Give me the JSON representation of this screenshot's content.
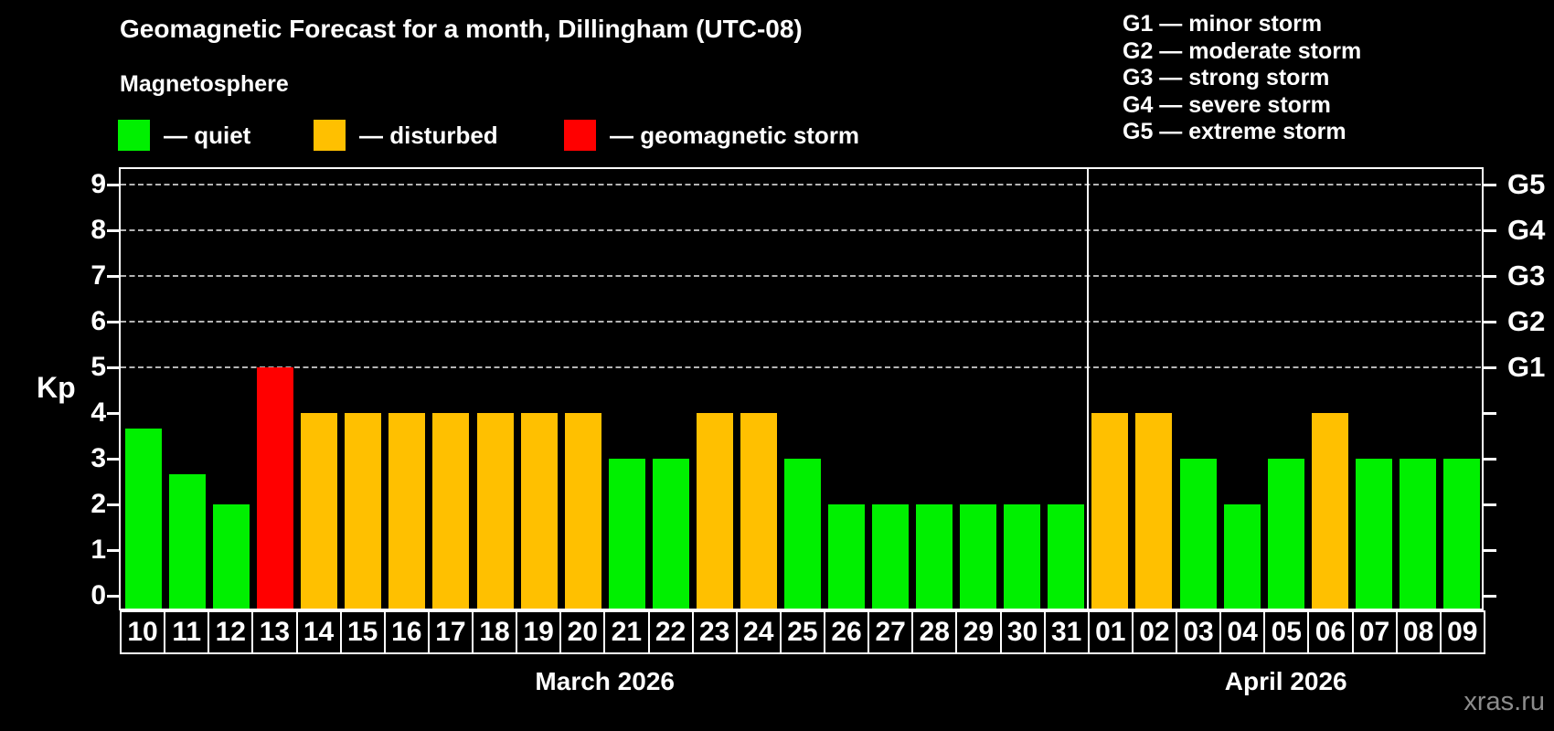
{
  "title": "Geomagnetic Forecast for a month, Dillingham (UTC-08)",
  "subtitle": "Magnetosphere",
  "legend": {
    "items": [
      {
        "name": "quiet",
        "label": "— quiet",
        "color": "#00f000"
      },
      {
        "name": "disturbed",
        "label": "— disturbed",
        "color": "#ffc000"
      },
      {
        "name": "storm",
        "label": "— geomagnetic storm",
        "color": "#ff0000"
      }
    ]
  },
  "g_scale_legend": {
    "items": [
      {
        "label": "G1 — minor storm"
      },
      {
        "label": "G2 — moderate storm"
      },
      {
        "label": "G3 — strong storm"
      },
      {
        "label": "G4 — severe storm"
      },
      {
        "label": "G5 — extreme storm"
      }
    ]
  },
  "y_axis": {
    "label": "Kp",
    "ticks": [
      "0",
      "1",
      "2",
      "3",
      "4",
      "5",
      "6",
      "7",
      "8",
      "9"
    ]
  },
  "right_axis": {
    "labels": [
      {
        "level": 5,
        "text": "G1"
      },
      {
        "level": 6,
        "text": "G2"
      },
      {
        "level": 7,
        "text": "G3"
      },
      {
        "level": 8,
        "text": "G4"
      },
      {
        "level": 9,
        "text": "G5"
      }
    ]
  },
  "watermark": "xras.ru",
  "chart_data": {
    "type": "bar",
    "title": "Geomagnetic Forecast for a month, Dillingham (UTC-08)",
    "ylabel": "Kp",
    "ylim": [
      0,
      9
    ],
    "grid_levels": [
      5,
      6,
      7,
      8,
      9
    ],
    "legend_position": "top-left",
    "months": [
      {
        "label": "March 2026",
        "days": [
          {
            "day": "10",
            "kp": 3.67,
            "status": "quiet"
          },
          {
            "day": "11",
            "kp": 2.67,
            "status": "quiet"
          },
          {
            "day": "12",
            "kp": 2,
            "status": "quiet"
          },
          {
            "day": "13",
            "kp": 5,
            "status": "storm"
          },
          {
            "day": "14",
            "kp": 4,
            "status": "disturbed"
          },
          {
            "day": "15",
            "kp": 4,
            "status": "disturbed"
          },
          {
            "day": "16",
            "kp": 4,
            "status": "disturbed"
          },
          {
            "day": "17",
            "kp": 4,
            "status": "disturbed"
          },
          {
            "day": "18",
            "kp": 4,
            "status": "disturbed"
          },
          {
            "day": "19",
            "kp": 4,
            "status": "disturbed"
          },
          {
            "day": "20",
            "kp": 4,
            "status": "disturbed"
          },
          {
            "day": "21",
            "kp": 3,
            "status": "quiet"
          },
          {
            "day": "22",
            "kp": 3,
            "status": "quiet"
          },
          {
            "day": "23",
            "kp": 4,
            "status": "disturbed"
          },
          {
            "day": "24",
            "kp": 4,
            "status": "disturbed"
          },
          {
            "day": "25",
            "kp": 3,
            "status": "quiet"
          },
          {
            "day": "26",
            "kp": 2,
            "status": "quiet"
          },
          {
            "day": "27",
            "kp": 2,
            "status": "quiet"
          },
          {
            "day": "28",
            "kp": 2,
            "status": "quiet"
          },
          {
            "day": "29",
            "kp": 2,
            "status": "quiet"
          },
          {
            "day": "30",
            "kp": 2,
            "status": "quiet"
          },
          {
            "day": "31",
            "kp": 2,
            "status": "quiet"
          }
        ]
      },
      {
        "label": "April 2026",
        "days": [
          {
            "day": "01",
            "kp": 4,
            "status": "disturbed"
          },
          {
            "day": "02",
            "kp": 4,
            "status": "disturbed"
          },
          {
            "day": "03",
            "kp": 3,
            "status": "quiet"
          },
          {
            "day": "04",
            "kp": 2,
            "status": "quiet"
          },
          {
            "day": "05",
            "kp": 3,
            "status": "quiet"
          },
          {
            "day": "06",
            "kp": 4,
            "status": "disturbed"
          },
          {
            "day": "07",
            "kp": 3,
            "status": "quiet"
          },
          {
            "day": "08",
            "kp": 3,
            "status": "quiet"
          },
          {
            "day": "09",
            "kp": 3,
            "status": "quiet"
          }
        ]
      }
    ]
  }
}
